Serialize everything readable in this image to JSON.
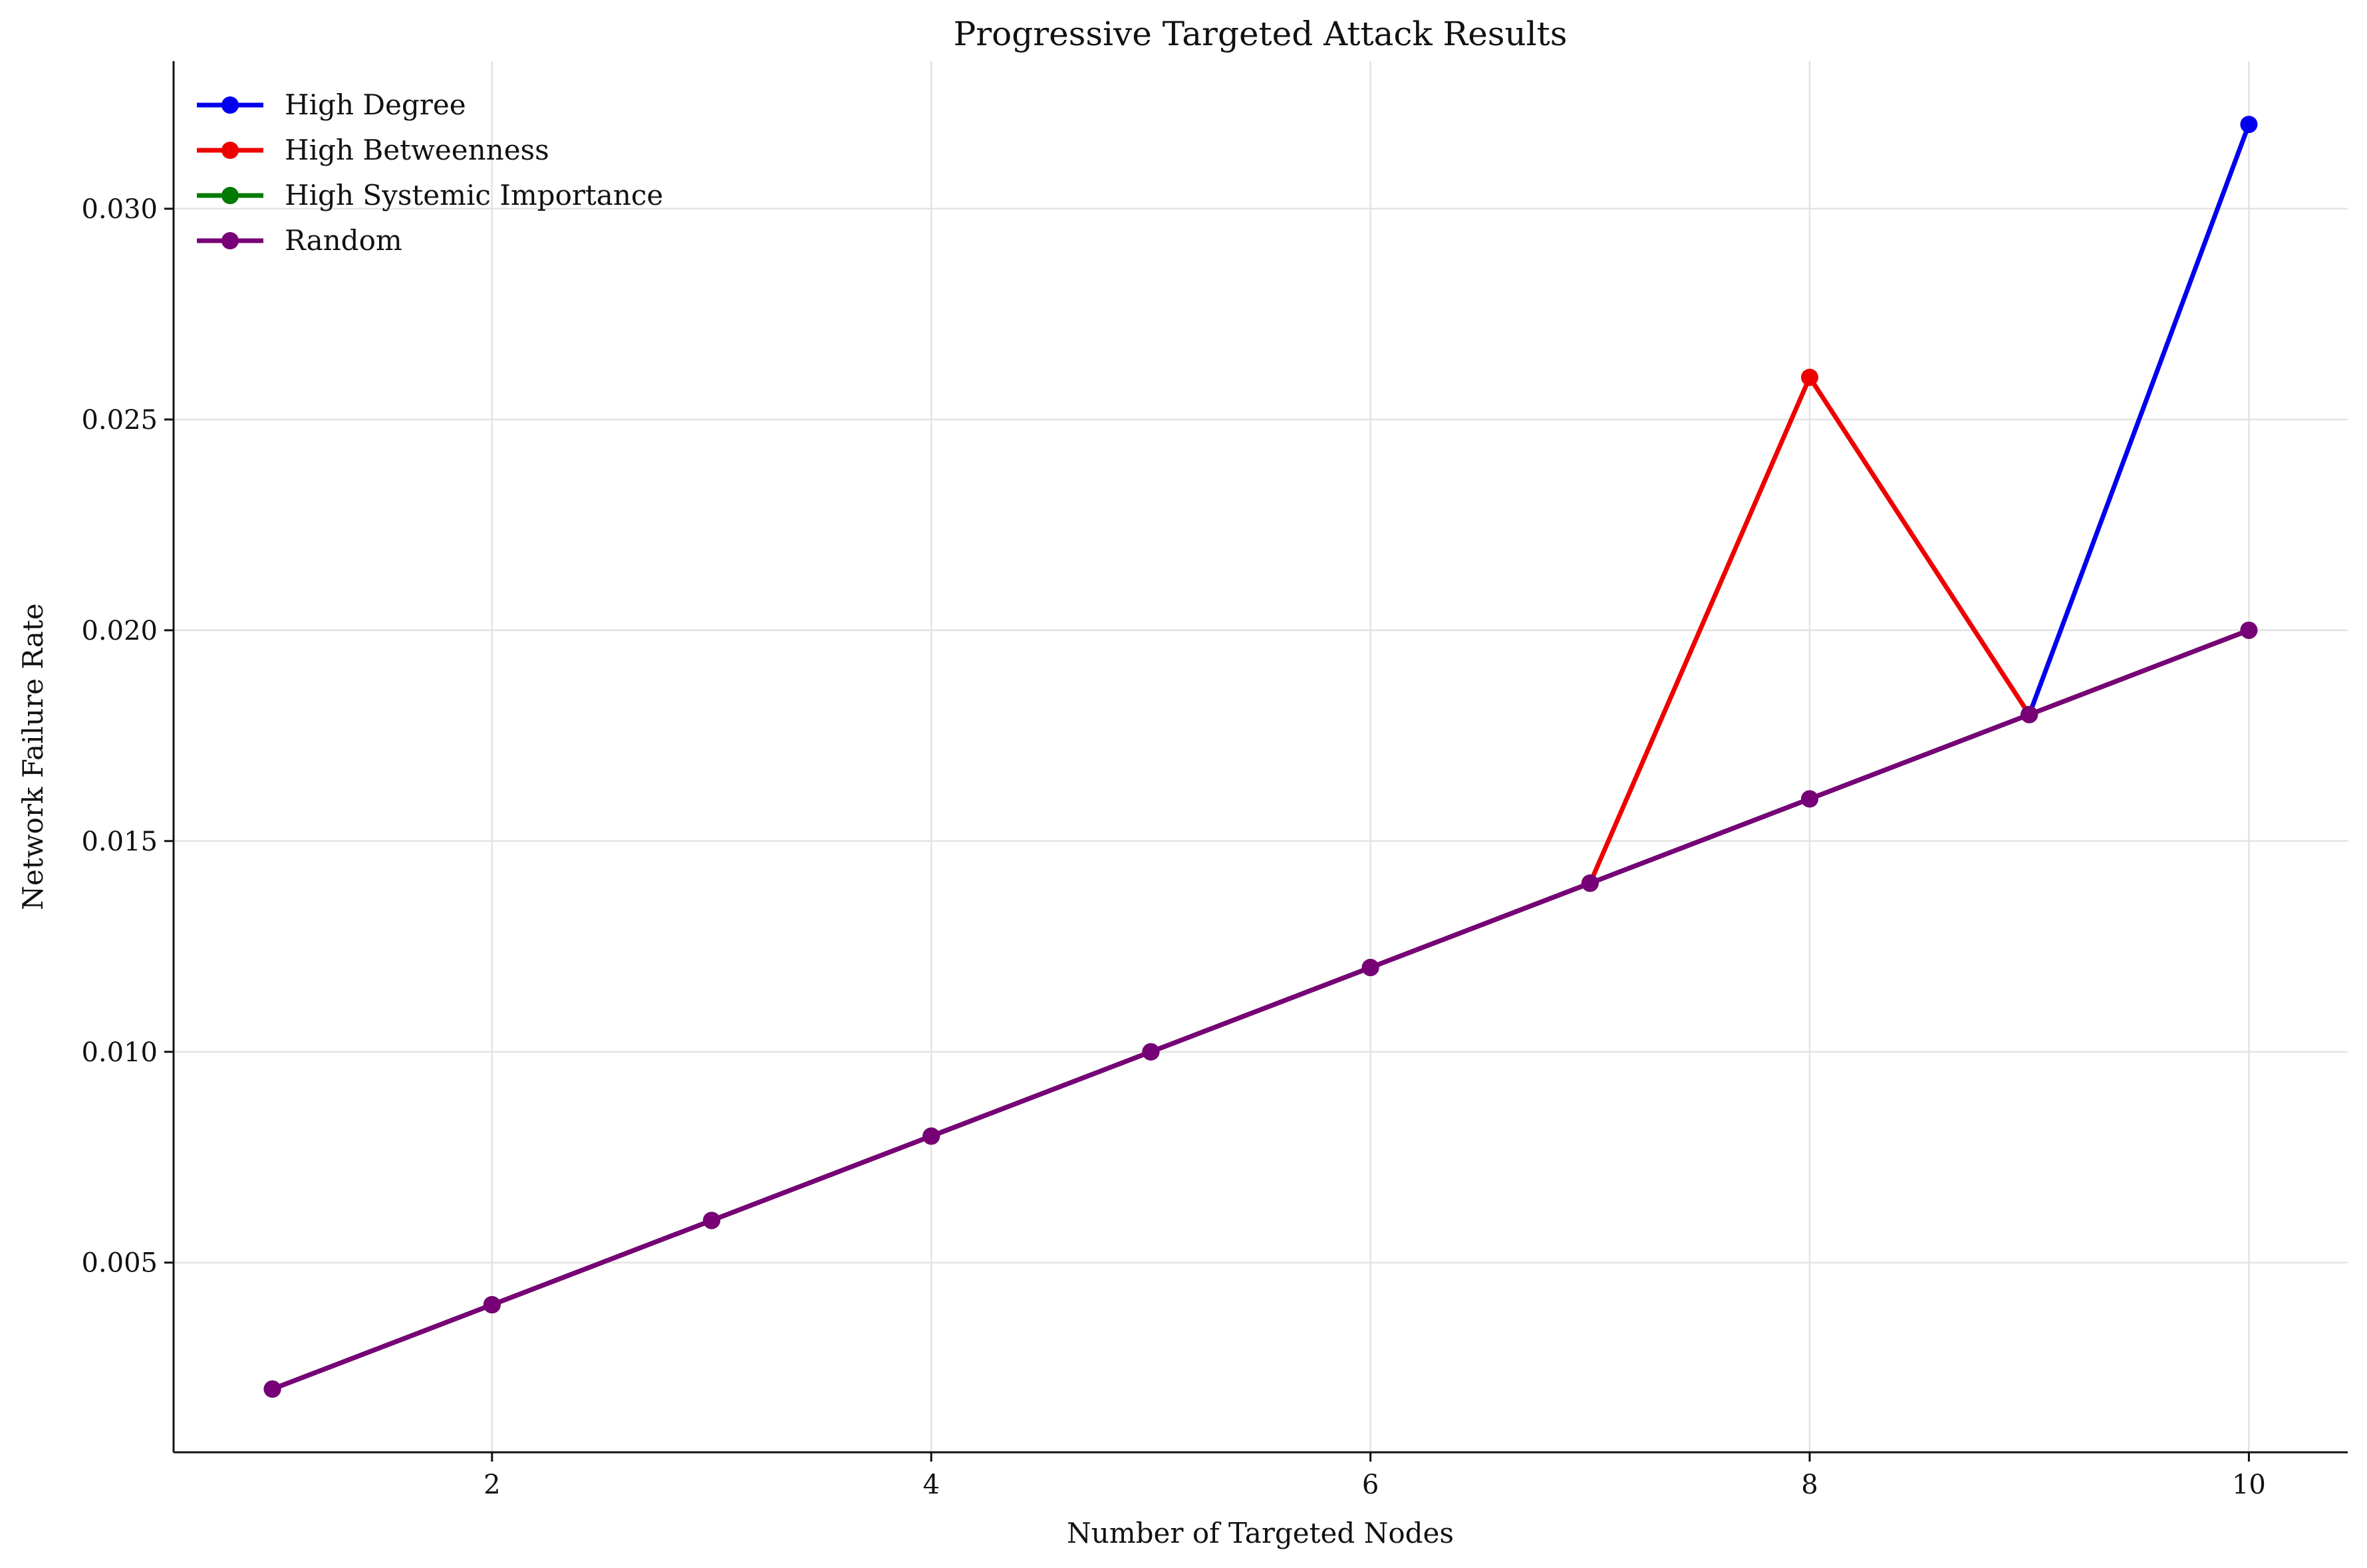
{
  "chart_data": {
    "type": "line",
    "title": "Progressive Targeted Attack Results",
    "xlabel": "Number of Targeted Nodes",
    "ylabel": "Network Failure Rate",
    "x": [
      1,
      2,
      3,
      4,
      5,
      6,
      7,
      8,
      9,
      10
    ],
    "xlim": [
      0.55,
      10.45
    ],
    "ylim": [
      0.0005,
      0.0335
    ],
    "xticks": [
      2,
      4,
      6,
      8,
      10
    ],
    "xtick_labels": [
      "2",
      "4",
      "6",
      "8",
      "10"
    ],
    "yticks": [
      0.005,
      0.01,
      0.015,
      0.02,
      0.025,
      0.03
    ],
    "ytick_labels": [
      "0.005",
      "0.010",
      "0.015",
      "0.020",
      "0.025",
      "0.030"
    ],
    "grid": true,
    "legend_position": "top-left",
    "series": [
      {
        "name": "High Degree",
        "color": "#0000ee",
        "values": [
          0.002,
          0.004,
          0.006,
          0.008,
          0.01,
          0.012,
          0.014,
          0.016,
          0.018,
          0.032
        ]
      },
      {
        "name": "High Betweenness",
        "color": "#ee0000",
        "values": [
          0.002,
          0.004,
          0.006,
          0.008,
          0.01,
          0.012,
          0.014,
          0.026,
          0.018,
          0.02
        ]
      },
      {
        "name": "High Systemic Importance",
        "color": "#007a00",
        "values": [
          0.002,
          0.004,
          0.006,
          0.008,
          0.01,
          0.012,
          0.014,
          0.016,
          0.018,
          0.02
        ]
      },
      {
        "name": "Random",
        "color": "#770077",
        "values": [
          0.002,
          0.004,
          0.006,
          0.008,
          0.01,
          0.012,
          0.014,
          0.016,
          0.018,
          0.02
        ]
      }
    ]
  }
}
